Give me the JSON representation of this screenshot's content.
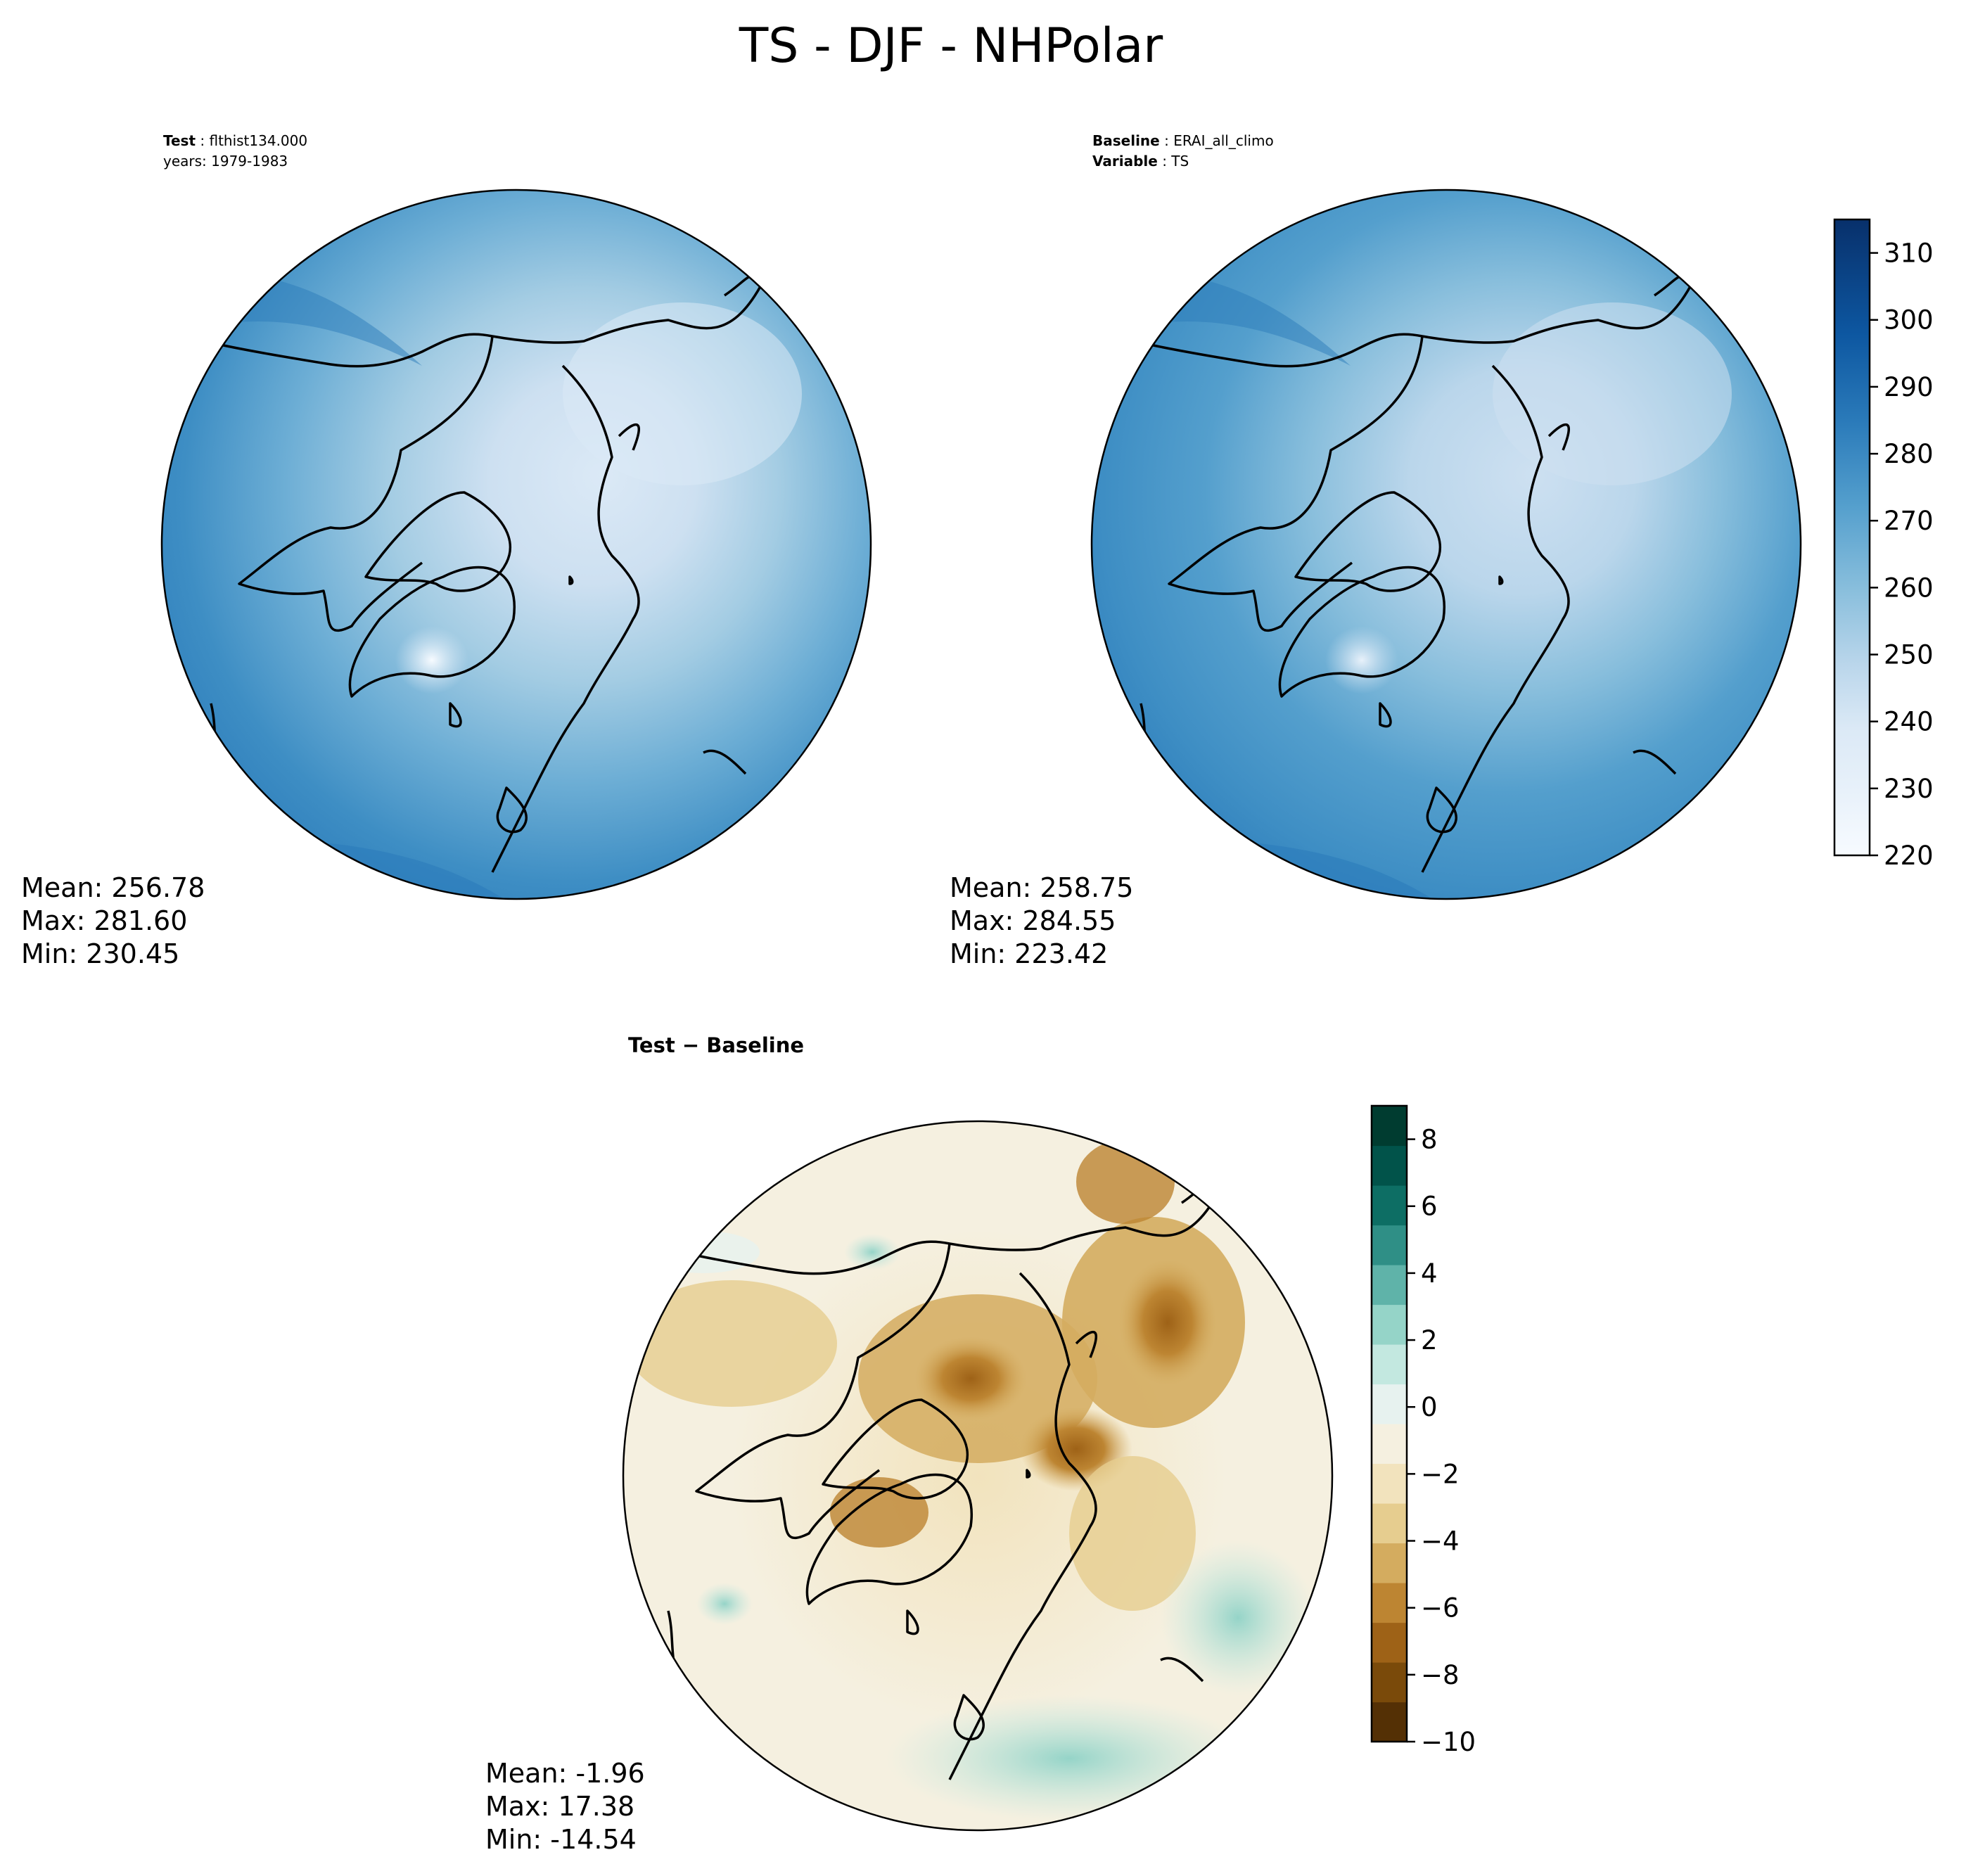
{
  "figure": {
    "title": "TS - DJF - NHPolar"
  },
  "chart_data": [
    {
      "type": "contour_map",
      "projection": "north-polar-stereographic",
      "header": {
        "key1": "Test",
        "value1": "flthist134.000",
        "line2": "years: 1979-1983"
      },
      "stats": {
        "mean": "Mean: 256.78",
        "max": "Max: 281.60",
        "min": "Min: 230.45"
      },
      "cmap": "Blues",
      "value_range": [
        220,
        315
      ]
    },
    {
      "type": "contour_map",
      "projection": "north-polar-stereographic",
      "header": {
        "key1": "Baseline",
        "value1": "ERAI_all_climo",
        "key2": "Variable",
        "value2": "TS"
      },
      "stats": {
        "mean": "Mean: 258.75",
        "max": "Max: 284.55",
        "min": "Min: 223.42"
      },
      "cmap": "Blues",
      "value_range": [
        220,
        315
      ],
      "colorbar": {
        "ticks": [
          "220",
          "230",
          "240",
          "250",
          "260",
          "270",
          "280",
          "290",
          "300",
          "310"
        ],
        "min": 220,
        "max": 315
      }
    },
    {
      "type": "contour_map",
      "projection": "north-polar-stereographic",
      "header": {
        "title": "Test − Baseline"
      },
      "stats": {
        "mean": "Mean: -1.96",
        "max": "Max: 17.38",
        "min": "Min: -14.54"
      },
      "cmap": "BrBG",
      "value_range": [
        -10,
        9
      ],
      "colorbar": {
        "ticks": [
          "−10",
          "−8",
          "−6",
          "−4",
          "−2",
          "0",
          "2",
          "4",
          "6",
          "8"
        ],
        "min": -10,
        "max": 9
      }
    }
  ],
  "colors": {
    "blues": [
      "#f7fbff",
      "#e8f1fa",
      "#dbe9f6",
      "#cde0f1",
      "#bad6eb",
      "#a3cce3",
      "#88bedc",
      "#6daed5",
      "#549fcd",
      "#3e8ec4",
      "#2b7bba",
      "#1c69af",
      "#0d57a1",
      "#08468a",
      "#08306b"
    ],
    "brbg": [
      "#543005",
      "#7a4a0a",
      "#9e6217",
      "#bd8532",
      "#d4ac5f",
      "#e6cd8f",
      "#f2e3bd",
      "#f5f0e0",
      "#e7f2ef",
      "#c3e8e0",
      "#95d4c8",
      "#5fb3a9",
      "#2f8f86",
      "#0d6e64",
      "#01534a",
      "#003c30"
    ]
  }
}
